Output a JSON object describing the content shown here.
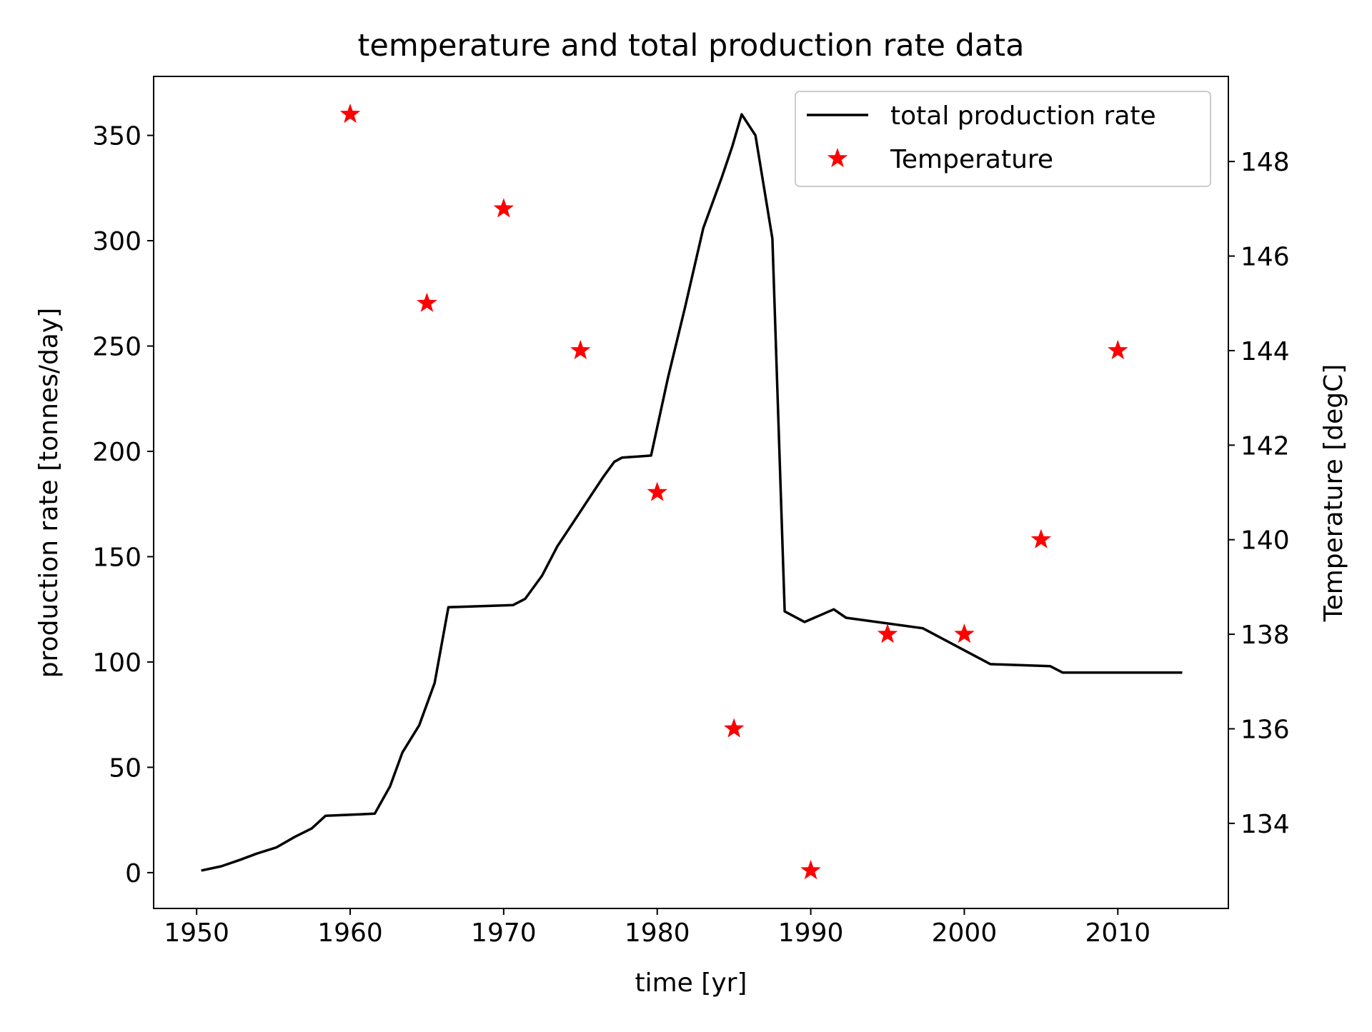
{
  "chart_data": {
    "type": "line",
    "title": "temperature and total production rate data",
    "xlabel": "time [yr]",
    "ylabel": "production rate [tonnes/day]",
    "y2label": "Temperature [degC]",
    "xlim": [
      1947.2,
      2017.2
    ],
    "ylim": [
      -17,
      378
    ],
    "y2lim": [
      132.2,
      149.8
    ],
    "x_ticks": [
      "1950",
      "1960",
      "1970",
      "1980",
      "1990",
      "2000",
      "2010"
    ],
    "y_ticks": [
      "0",
      "50",
      "100",
      "150",
      "200",
      "250",
      "300",
      "350"
    ],
    "y2_ticks": [
      "134",
      "136",
      "138",
      "140",
      "142",
      "144",
      "146",
      "148"
    ],
    "grid": false,
    "legend": {
      "position": "top-right",
      "entries": [
        "total production rate",
        "Temperature"
      ]
    },
    "colors": {
      "production": "#000000",
      "temperature": "#ff0000"
    },
    "series": [
      {
        "name": "total production rate",
        "axis": "left",
        "style": "line",
        "x": [
          1950.3,
          1951.6,
          1952.8,
          1953.9,
          1955.2,
          1956.4,
          1957.5,
          1958.4,
          1961.6,
          1962.6,
          1963.4,
          1964.5,
          1965.5,
          1966.4,
          1970.6,
          1971.4,
          1972.5,
          1973.5,
          1974.5,
          1975.5,
          1976.5,
          1977.2,
          1977.7,
          1979.6,
          1980.7,
          1981.8,
          1983.0,
          1984.2,
          1984.9,
          1985.5,
          1986.4,
          1987.5,
          1988.3,
          1989.6,
          1991.5,
          1992.3,
          1997.3,
          2001.7,
          2005.6,
          2006.4,
          2014.2
        ],
        "y": [
          1,
          3,
          6,
          9,
          12,
          17,
          21,
          27,
          28,
          41,
          57,
          70,
          90,
          126,
          127,
          130,
          141,
          155,
          166,
          177,
          188,
          195,
          197,
          198,
          235,
          268,
          306,
          330,
          345,
          360,
          350,
          301,
          124,
          119,
          125,
          121,
          116,
          99,
          98,
          95,
          95
        ]
      },
      {
        "name": "Temperature",
        "axis": "right",
        "style": "markers",
        "marker": "star",
        "x": [
          1960,
          1965,
          1970,
          1975,
          1980,
          1985,
          1990,
          1995,
          2000,
          2005,
          2010
        ],
        "y": [
          149,
          145,
          147,
          144,
          141,
          136,
          133,
          138,
          138,
          140,
          144
        ]
      }
    ]
  }
}
